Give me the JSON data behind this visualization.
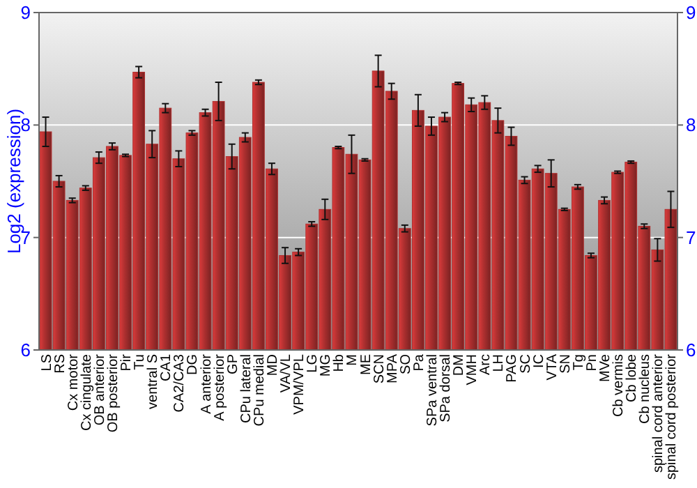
{
  "chart_data": {
    "type": "bar",
    "ylabel": "Log2 (expression)",
    "categories": [
      "LS",
      "RS",
      "Cx motor",
      "Cx cingulate",
      "OB anterior",
      "OB posterior",
      "Pir",
      "Tu",
      "ventral S",
      "CA1",
      "CA2/CA3",
      "DG",
      "A anterior",
      "A posterior",
      "GP",
      "CPu lateral",
      "CPu medial",
      "MD",
      "VA/VL",
      "VPM/VPL",
      "LG",
      "MG",
      "Hb",
      "M",
      "ME",
      "SCN",
      "MPA",
      "SO",
      "Pa",
      "SPa ventral",
      "SPa dorsal",
      "DM",
      "VMH",
      "Arc",
      "LH",
      "PAG",
      "SC",
      "IC",
      "VTA",
      "SN",
      "Tg",
      "Pn",
      "MVe",
      "Cb vermis",
      "Cb lobe",
      "Cb nucleus",
      "spinal cord anterior",
      "spinal cord posterior"
    ],
    "values": [
      7.94,
      7.5,
      7.33,
      7.44,
      7.71,
      7.81,
      7.73,
      8.47,
      7.83,
      8.15,
      7.7,
      7.93,
      8.11,
      8.21,
      7.72,
      7.89,
      8.38,
      7.61,
      6.84,
      6.87,
      7.12,
      7.25,
      7.8,
      7.74,
      7.69,
      8.48,
      8.3,
      7.08,
      8.13,
      7.99,
      8.07,
      8.37,
      8.18,
      8.2,
      8.04,
      7.9,
      7.51,
      7.61,
      7.57,
      7.25,
      7.45,
      6.84,
      7.33,
      7.58,
      7.67,
      7.1,
      6.89,
      7.25
    ],
    "errors": [
      0.13,
      0.05,
      0.02,
      0.02,
      0.05,
      0.03,
      0.01,
      0.05,
      0.12,
      0.04,
      0.07,
      0.02,
      0.03,
      0.17,
      0.11,
      0.04,
      0.02,
      0.05,
      0.07,
      0.03,
      0.02,
      0.09,
      0.01,
      0.17,
      0.01,
      0.14,
      0.07,
      0.03,
      0.14,
      0.08,
      0.04,
      0.01,
      0.06,
      0.06,
      0.11,
      0.08,
      0.03,
      0.03,
      0.12,
      0.01,
      0.02,
      0.02,
      0.03,
      0.01,
      0.01,
      0.02,
      0.1,
      0.16
    ],
    "color": "#b03030",
    "ylim": [
      6,
      9
    ],
    "yticks": [
      6,
      7,
      8,
      9
    ],
    "y2lim": [
      6,
      9
    ],
    "y2ticks": [
      6,
      7,
      8,
      9
    ],
    "grid": "y"
  }
}
